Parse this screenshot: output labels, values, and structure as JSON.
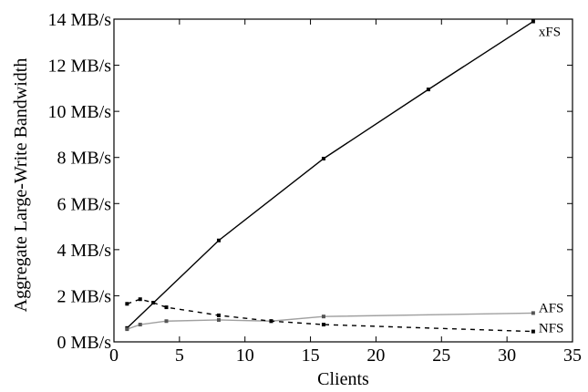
{
  "chart_data": {
    "type": "line",
    "title": "",
    "xlabel": "Clients",
    "ylabel": "Aggregate Large-Write Bandwidth",
    "xlim": [
      0,
      35
    ],
    "ylim": [
      0,
      14
    ],
    "x_ticks": [
      0,
      5,
      10,
      15,
      20,
      25,
      30,
      35
    ],
    "y_ticks": [
      0,
      2,
      4,
      6,
      8,
      10,
      12,
      14
    ],
    "y_tick_labels": [
      "0 MB/s",
      "2 MB/s",
      "4 MB/s",
      "6 MB/s",
      "8 MB/s",
      "10 MB/s",
      "12 MB/s",
      "14 MB/s"
    ],
    "grid": false,
    "legend": "none",
    "series": [
      {
        "name": "xFS",
        "color": "#000000",
        "style": "solid",
        "points": [
          [
            1,
            0.6
          ],
          [
            8,
            4.4
          ],
          [
            16,
            7.95
          ],
          [
            24,
            10.95
          ],
          [
            32,
            13.9
          ]
        ]
      },
      {
        "name": "AFS",
        "color": "#a0a0a0",
        "style": "solid",
        "points": [
          [
            1,
            0.55
          ],
          [
            2,
            0.75
          ],
          [
            4,
            0.9
          ],
          [
            8,
            0.95
          ],
          [
            12,
            0.9
          ],
          [
            16,
            1.1
          ],
          [
            32,
            1.25
          ]
        ]
      },
      {
        "name": "NFS",
        "color": "#000000",
        "style": "dashed",
        "points": [
          [
            1,
            1.65
          ],
          [
            2,
            1.85
          ],
          [
            3,
            1.7
          ],
          [
            4,
            1.5
          ],
          [
            8,
            1.15
          ],
          [
            12,
            0.9
          ],
          [
            16,
            0.75
          ],
          [
            32,
            0.45
          ]
        ]
      }
    ]
  }
}
